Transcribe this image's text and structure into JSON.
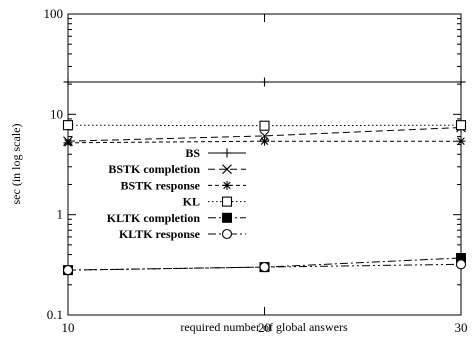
{
  "chart_data": {
    "type": "line",
    "title": "",
    "xlabel": "required number of global answers",
    "ylabel": "sec (in log scale)",
    "y_scale": "log",
    "xlim": [
      10,
      30
    ],
    "ylim": [
      0.1,
      100
    ],
    "x_ticks": [
      10,
      20,
      30
    ],
    "x_tick_labels": [
      "10",
      "20",
      "30"
    ],
    "y_ticks": [
      0.1,
      1,
      10,
      100
    ],
    "y_tick_labels": [
      "0.1",
      "1",
      "10",
      "100"
    ],
    "grid": false,
    "legend_position": "center-left",
    "x": [
      10,
      20,
      30
    ],
    "series": [
      {
        "name": "BS",
        "values": [
          21,
          21,
          21
        ],
        "marker": "plus",
        "dash": "solid"
      },
      {
        "name": "BSTK completion",
        "values": [
          5.4,
          6.1,
          7.4
        ],
        "marker": "x",
        "dash": "dashed"
      },
      {
        "name": "BSTK response",
        "values": [
          5.2,
          5.4,
          5.4
        ],
        "marker": "star",
        "dash": "short-dashed"
      },
      {
        "name": "KL",
        "values": [
          7.8,
          7.7,
          7.8
        ],
        "marker": "open-square",
        "dash": "dotted"
      },
      {
        "name": "KLTK completion",
        "values": [
          0.28,
          0.3,
          0.37
        ],
        "marker": "filled-square",
        "dash": "dash-dot"
      },
      {
        "name": "KLTK response",
        "values": [
          0.28,
          0.3,
          0.32
        ],
        "marker": "open-circle",
        "dash": "dash-dot-dot"
      }
    ]
  }
}
